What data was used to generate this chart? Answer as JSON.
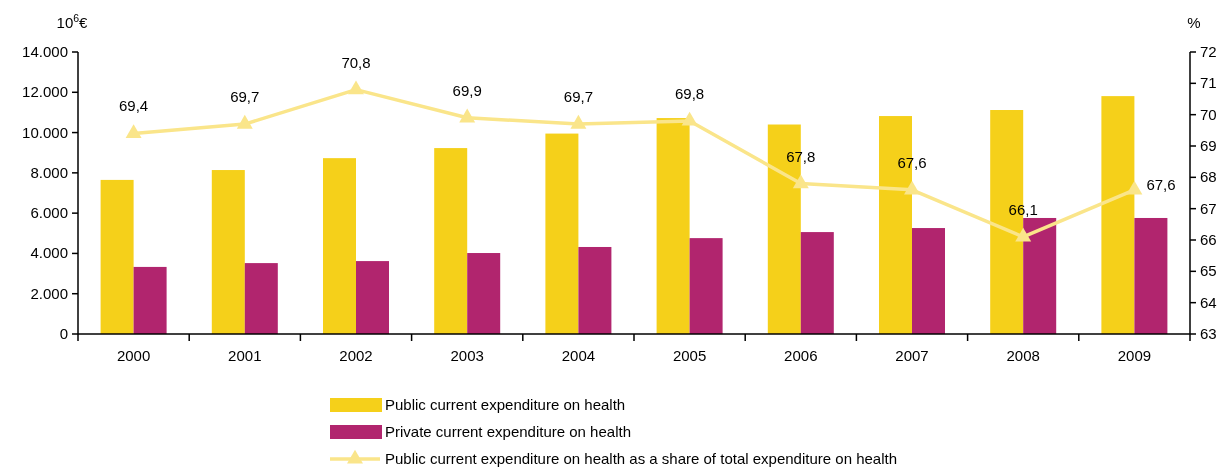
{
  "chart_data": {
    "type": "bar",
    "ylabel": "10$^{6}$€",
    "y2label": "%",
    "categories": [
      "2000",
      "2001",
      "2002",
      "2003",
      "2004",
      "2005",
      "2006",
      "2007",
      "2008",
      "2009"
    ],
    "series": [
      {
        "name": "Public current expenditure on health",
        "color": "#f5d01a",
        "values": [
          7650,
          8140,
          8730,
          9230,
          9950,
          10720,
          10400,
          10820,
          11120,
          11810
        ]
      },
      {
        "name": "Private current expenditure on health",
        "color": "#b1256e",
        "values": [
          3330,
          3520,
          3620,
          4020,
          4320,
          4760,
          5060,
          5260,
          5760,
          5760
        ]
      },
      {
        "name": "Public current expenditure on health as a share of total expenditure on health",
        "type": "line",
        "axis": "y2",
        "color": "#fae58a",
        "marker": "triangle",
        "values": [
          69.4,
          69.7,
          70.8,
          69.9,
          69.7,
          69.8,
          67.8,
          67.6,
          66.1,
          67.6
        ],
        "value_labels": [
          "69,4",
          "69,7",
          "70,8",
          "69,9",
          "69,7",
          "69,8",
          "67,8",
          "67,6",
          "66,1",
          "67,6"
        ]
      }
    ],
    "ylim": [
      0,
      14000
    ],
    "yticks": [
      {
        "value": 0,
        "label": "0"
      },
      {
        "value": 2000,
        "label": "2.000"
      },
      {
        "value": 4000,
        "label": "4.000"
      },
      {
        "value": 6000,
        "label": "6.000"
      },
      {
        "value": 8000,
        "label": "8.000"
      },
      {
        "value": 10000,
        "label": "10.000"
      },
      {
        "value": 12000,
        "label": "12.000"
      },
      {
        "value": 14000,
        "label": "14.000"
      }
    ],
    "y2lim": [
      63,
      72
    ],
    "y2ticks": [
      63,
      64,
      65,
      66,
      67,
      68,
      69,
      70,
      71,
      72
    ],
    "legend": "bottom",
    "grid": false
  }
}
